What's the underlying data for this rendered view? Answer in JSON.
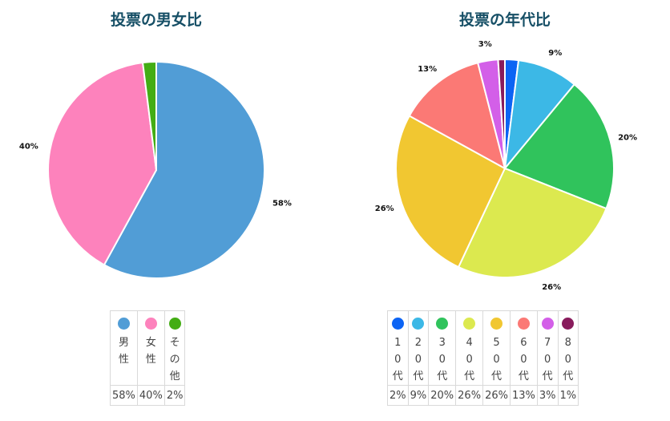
{
  "charts": [
    {
      "id": "gender",
      "title": "投票の男女比",
      "slices": [
        {
          "label": "男性",
          "value": 58,
          "pct": "58%",
          "color": "#519dd6"
        },
        {
          "label": "女性",
          "value": 40,
          "pct": "40%",
          "color": "#fd82bc"
        },
        {
          "label": "その他",
          "value": 2,
          "pct": "2%",
          "color": "#43ad14"
        }
      ]
    },
    {
      "id": "age",
      "title": "投票の年代比",
      "slices": [
        {
          "label": "10代",
          "value": 2,
          "pct": "2%",
          "color": "#0c64f4"
        },
        {
          "label": "20代",
          "value": 9,
          "pct": "9%",
          "color": "#3cb8e6"
        },
        {
          "label": "30代",
          "value": 20,
          "pct": "20%",
          "color": "#30c35c"
        },
        {
          "label": "40代",
          "value": 26,
          "pct": "26%",
          "color": "#dce94f"
        },
        {
          "label": "50代",
          "value": 26,
          "pct": "26%",
          "color": "#f1c731"
        },
        {
          "label": "60代",
          "value": 13,
          "pct": "13%",
          "color": "#fb7975"
        },
        {
          "label": "70代",
          "value": 3,
          "pct": "3%",
          "color": "#d35fe8"
        },
        {
          "label": "80代",
          "value": 1,
          "pct": "1%",
          "color": "#881b5c"
        }
      ]
    }
  ],
  "chart_data": [
    {
      "type": "pie",
      "title": "投票の男女比",
      "categories": [
        "男性",
        "女性",
        "その他"
      ],
      "values": [
        58,
        40,
        2
      ]
    },
    {
      "type": "pie",
      "title": "投票の年代比",
      "categories": [
        "10代",
        "20代",
        "30代",
        "40代",
        "50代",
        "60代",
        "70代",
        "80代"
      ],
      "values": [
        2,
        9,
        20,
        26,
        26,
        13,
        3,
        1
      ]
    }
  ]
}
